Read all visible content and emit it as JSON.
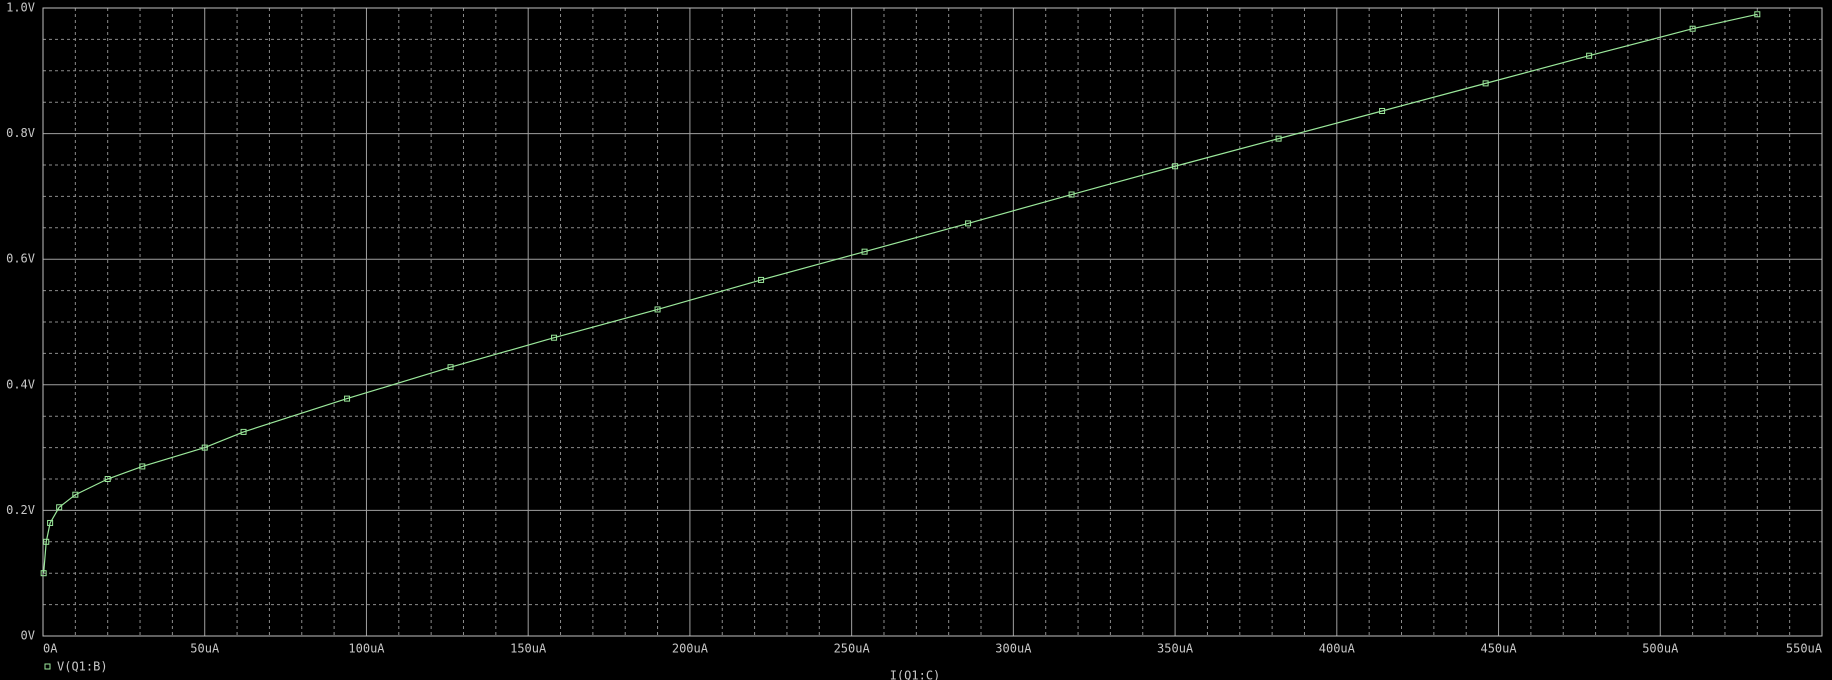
{
  "chart_data": {
    "type": "line",
    "xlabel": "I(Q1:C)",
    "x": [
      0.2,
      1,
      2.2,
      5,
      10,
      20,
      30.7,
      50,
      62,
      94,
      126,
      158,
      190,
      222,
      254,
      286,
      318,
      350,
      382,
      414,
      446,
      478,
      510,
      530
    ],
    "series": [
      {
        "name": "V(Q1:B)",
        "color": "#9be89b",
        "values": [
          0.1,
          0.15,
          0.18,
          0.205,
          0.225,
          0.25,
          0.27,
          0.3,
          0.325,
          0.378,
          0.428,
          0.475,
          0.52,
          0.567,
          0.612,
          0.657,
          0.703,
          0.748,
          0.792,
          0.836,
          0.88,
          0.924,
          0.967,
          0.99
        ]
      }
    ],
    "xlim": [
      0,
      550
    ],
    "ylim": [
      0,
      1.0
    ],
    "xticks": [
      {
        "value": 0,
        "label": "0A"
      },
      {
        "value": 50,
        "label": "50uA"
      },
      {
        "value": 100,
        "label": "100uA"
      },
      {
        "value": 150,
        "label": "150uA"
      },
      {
        "value": 200,
        "label": "200uA"
      },
      {
        "value": 250,
        "label": "250uA"
      },
      {
        "value": 300,
        "label": "300uA"
      },
      {
        "value": 350,
        "label": "350uA"
      },
      {
        "value": 400,
        "label": "400uA"
      },
      {
        "value": 450,
        "label": "450uA"
      },
      {
        "value": 500,
        "label": "500uA"
      },
      {
        "value": 550,
        "label": "550uA"
      }
    ],
    "yticks": [
      {
        "value": 0,
        "label": "0V"
      },
      {
        "value": 0.2,
        "label": "0.2V"
      },
      {
        "value": 0.4,
        "label": "0.4V"
      },
      {
        "value": 0.6,
        "label": "0.6V"
      },
      {
        "value": 0.8,
        "label": "0.8V"
      },
      {
        "value": 1.0,
        "label": "1.0V"
      }
    ],
    "grid": true,
    "xminor": 5,
    "yminor": 4
  }
}
